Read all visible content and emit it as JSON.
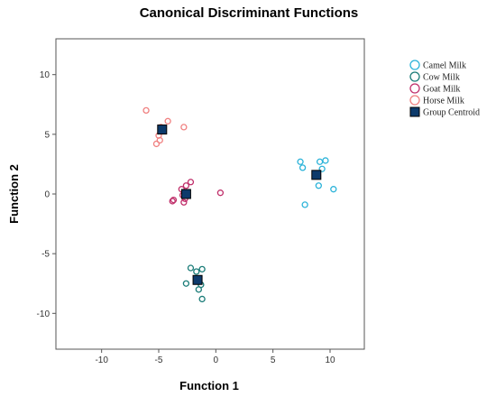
{
  "chart_data": {
    "type": "scatter",
    "title": "Canonical Discriminant Functions",
    "xlabel": "Function 1",
    "ylabel": "Function 2",
    "xlim": [
      -14,
      13
    ],
    "ylim": [
      -13,
      13
    ],
    "xticks": [
      "-10",
      "-5",
      "0",
      "5",
      "10"
    ],
    "xtick_values": [
      -10,
      -5,
      0,
      5,
      10
    ],
    "yticks": [
      "10",
      "5",
      "0",
      "-5",
      "-10"
    ],
    "ytick_values": [
      10,
      5,
      0,
      -5,
      -10
    ],
    "grid": false,
    "legend_position": "right",
    "series": [
      {
        "name": "Camel Milk",
        "color": "#2bb3d9",
        "marker": "open-circle",
        "points": [
          [
            7.4,
            2.7
          ],
          [
            7.6,
            2.2
          ],
          [
            9.1,
            2.7
          ],
          [
            9.6,
            2.8
          ],
          [
            9.3,
            2.1
          ],
          [
            9.0,
            0.7
          ],
          [
            10.3,
            0.4
          ],
          [
            7.8,
            -0.9
          ]
        ]
      },
      {
        "name": "Cow Milk",
        "color": "#1a7c78",
        "marker": "open-circle",
        "points": [
          [
            -2.2,
            -6.2
          ],
          [
            -1.7,
            -6.5
          ],
          [
            -1.2,
            -6.3
          ],
          [
            -1.6,
            -7.1
          ],
          [
            -2.6,
            -7.5
          ],
          [
            -1.3,
            -7.6
          ],
          [
            -1.5,
            -8.0
          ],
          [
            -1.2,
            -8.8
          ]
        ]
      },
      {
        "name": "Goat Milk",
        "color": "#c0306b",
        "marker": "open-circle",
        "points": [
          [
            -2.2,
            1.0
          ],
          [
            -2.6,
            0.7
          ],
          [
            -3.0,
            0.4
          ],
          [
            -2.9,
            -0.1
          ],
          [
            -2.7,
            -0.4
          ],
          [
            -3.7,
            -0.5
          ],
          [
            -3.8,
            -0.6
          ],
          [
            -2.8,
            -0.7
          ],
          [
            0.4,
            0.1
          ]
        ]
      },
      {
        "name": "Horse Milk",
        "color": "#f08080",
        "marker": "open-circle",
        "points": [
          [
            -6.1,
            7.0
          ],
          [
            -4.2,
            6.1
          ],
          [
            -4.8,
            5.6
          ],
          [
            -2.8,
            5.6
          ],
          [
            -5.0,
            4.9
          ],
          [
            -4.9,
            4.5
          ],
          [
            -5.2,
            4.2
          ]
        ]
      },
      {
        "name": "Group Centroid",
        "color": "#0d3a6b",
        "marker": "filled-square",
        "points": [
          [
            8.8,
            1.6
          ],
          [
            -1.6,
            -7.2
          ],
          [
            -2.6,
            0.0
          ],
          [
            -4.7,
            5.4
          ]
        ]
      }
    ]
  }
}
